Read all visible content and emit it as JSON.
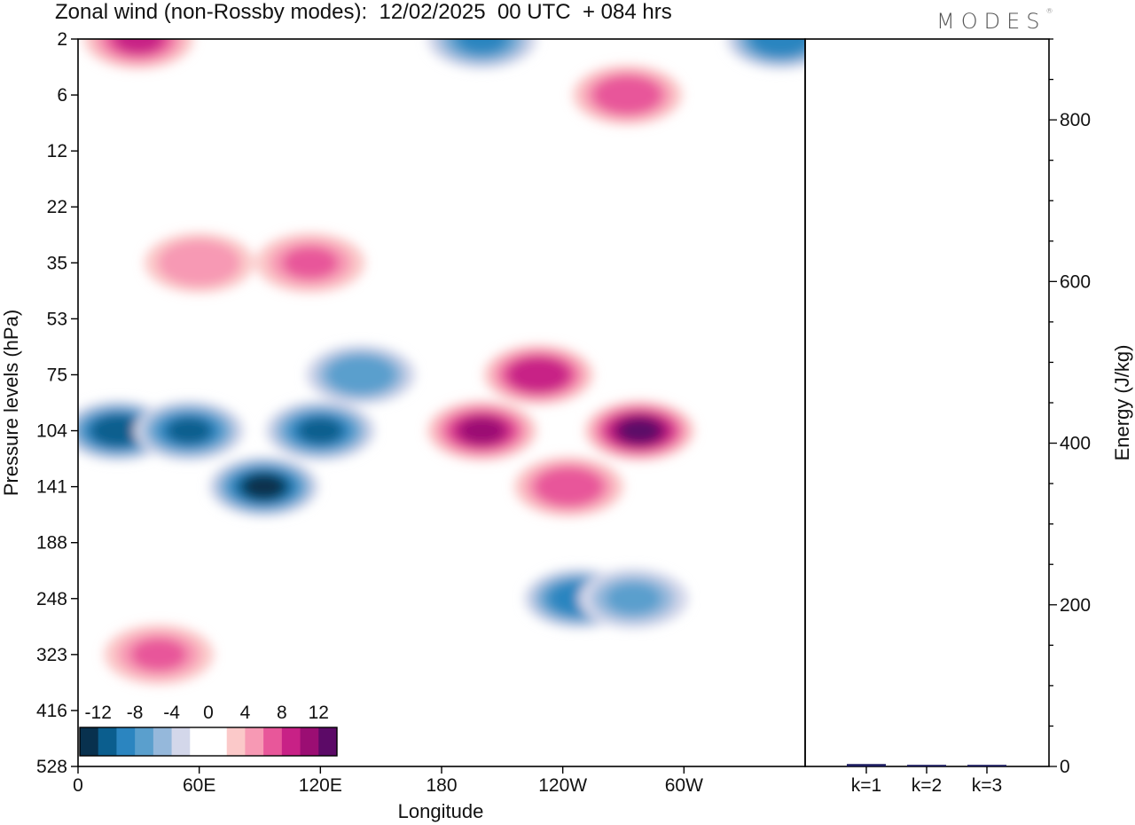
{
  "title": "Zonal wind (non-Rossby modes):  12/02/2025  00 UTC  + 084 hrs",
  "logo": "MODES",
  "chart_data": [
    {
      "type": "heatmap",
      "xlabel": "Longitude",
      "ylabel": "Pressure levels (hPa)",
      "x_ticks": [
        "0",
        "60E",
        "120E",
        "180",
        "120W",
        "60W"
      ],
      "x_tick_degrees": [
        0,
        60,
        120,
        180,
        240,
        300
      ],
      "xlim": [
        0,
        360
      ],
      "y_ticks": [
        "2",
        "6",
        "12",
        "22",
        "35",
        "53",
        "75",
        "104",
        "141",
        "188",
        "248",
        "323",
        "416",
        "528"
      ],
      "colorbar": {
        "labels": [
          "-12",
          "-8",
          "-4",
          "0",
          "4",
          "8",
          "12"
        ],
        "label_values": [
          -12,
          -8,
          -4,
          0,
          4,
          8,
          12
        ],
        "levels": [
          -14,
          -12,
          -10,
          -8,
          -6,
          -4,
          -2,
          0,
          2,
          4,
          6,
          8,
          10,
          12,
          14
        ],
        "colors": [
          "#08314e",
          "#0b5e8e",
          "#2b85c0",
          "#5a9fcd",
          "#95b8db",
          "#d3d7ea",
          "#ffffff",
          "#ffffff",
          "#fbc9c9",
          "#f799b4",
          "#e8579a",
          "#c82186",
          "#9b0e73",
          "#5c0a67"
        ]
      },
      "features": [
        {
          "lon": 20,
          "level": 104,
          "value": -11
        },
        {
          "lon": 55,
          "level": 104,
          "value": -10
        },
        {
          "lon": 92,
          "level": 141,
          "value": -12
        },
        {
          "lon": 120,
          "level": 104,
          "value": -10
        },
        {
          "lon": 140,
          "level": 75,
          "value": -7
        },
        {
          "lon": 200,
          "level": 104,
          "value": 10
        },
        {
          "lon": 228,
          "level": 75,
          "value": 9
        },
        {
          "lon": 278,
          "level": 104,
          "value": 12
        },
        {
          "lon": 243,
          "level": 141,
          "value": 7
        },
        {
          "lon": 40,
          "level": 323,
          "value": 6
        },
        {
          "lon": 248,
          "level": 248,
          "value": -9
        },
        {
          "lon": 275,
          "level": 248,
          "value": -6
        },
        {
          "lon": 60,
          "level": 35,
          "value": 5
        },
        {
          "lon": 115,
          "level": 35,
          "value": 6
        },
        {
          "lon": 30,
          "level": 2,
          "value": 8
        },
        {
          "lon": 200,
          "level": 2,
          "value": -8
        },
        {
          "lon": 348,
          "level": 2,
          "value": -9
        },
        {
          "lon": 272,
          "level": 6,
          "value": 7
        }
      ]
    },
    {
      "type": "bar",
      "ylabel": "Energy (J/kg)",
      "categories": [
        "k=1",
        "k=2",
        "k=3"
      ],
      "values": [
        3,
        2,
        2
      ],
      "ylim": [
        0,
        900
      ],
      "y_ticks": [
        "0",
        "200",
        "400",
        "600",
        "800"
      ],
      "y_tick_values": [
        0,
        200,
        400,
        600,
        800
      ],
      "bar_color": "#1b1b5e"
    }
  ]
}
